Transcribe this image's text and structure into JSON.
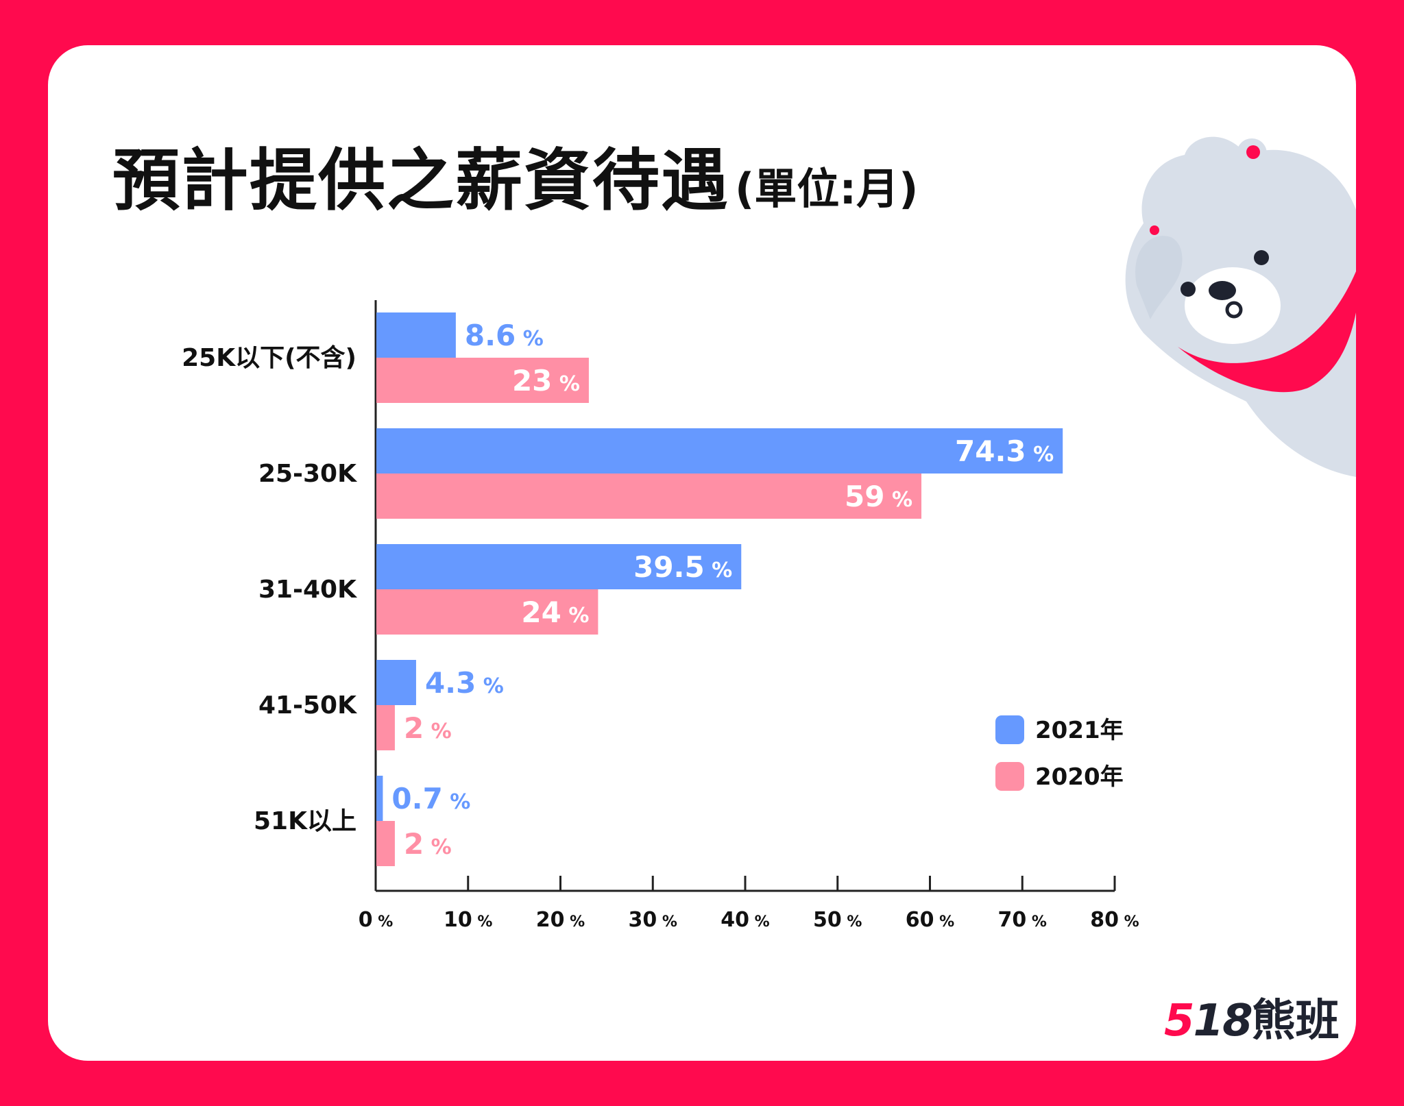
{
  "title": "預計提供之薪資待遇",
  "title_unit": "(單位:月)",
  "logo": {
    "num_accent": "5",
    "num_rest": "18",
    "text": "熊班"
  },
  "colors": {
    "background": "#ff0a4e",
    "series_2021": "#6699ff",
    "series_2020": "#ff8fa5"
  },
  "chart_data": {
    "type": "bar",
    "orientation": "horizontal",
    "categories": [
      "25K以下(不含)",
      "25-30K",
      "31-40K",
      "41-50K",
      "51K以上"
    ],
    "series": [
      {
        "name": "2021年",
        "values": [
          8.6,
          74.3,
          39.5,
          4.3,
          0.7
        ],
        "labels": [
          "8.6",
          "74.3",
          "39.5",
          "4.3",
          "0.7"
        ]
      },
      {
        "name": "2020年",
        "values": [
          23,
          59,
          24,
          2,
          2
        ],
        "labels": [
          "23",
          "59",
          "24",
          "2",
          "2"
        ]
      }
    ],
    "value_suffix": "%",
    "xlim": [
      0,
      80
    ],
    "xticks": [
      0,
      10,
      20,
      30,
      40,
      50,
      60,
      70,
      80
    ],
    "xtick_labels": [
      "0",
      "10",
      "20",
      "30",
      "40",
      "50",
      "60",
      "70",
      "80"
    ],
    "grid": false,
    "legend_position": "bottom-right"
  }
}
